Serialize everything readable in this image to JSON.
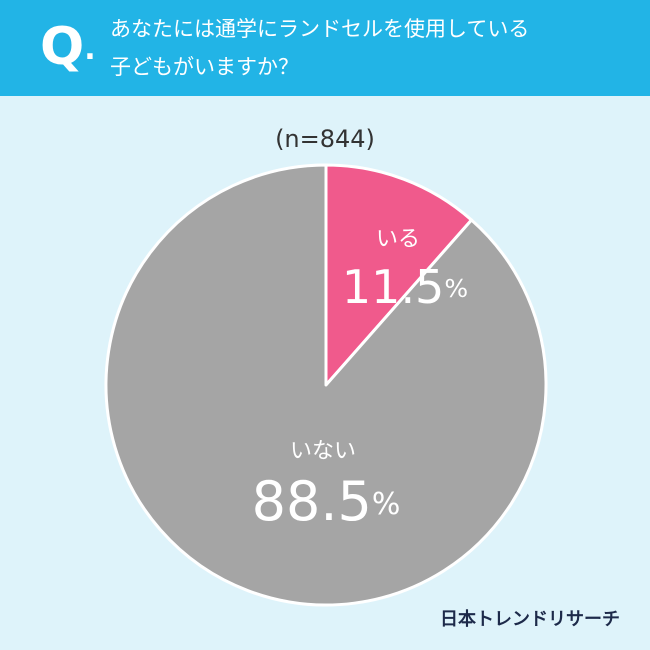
{
  "header": {
    "mark": "Q.",
    "title": [
      "あなたには通学にランドセルを使用している",
      "子どもがいますか？"
    ]
  },
  "chart_data": {
    "type": "pie",
    "subtitle": "(n=844)",
    "categories": [
      "いる",
      "いない"
    ],
    "values": [
      11.5,
      88.5
    ],
    "value_labels": [
      "11.5%",
      "88.5%"
    ],
    "colors": [
      "#f05a8c",
      "#a5a5a5"
    ]
  },
  "footer": {
    "brand": "日本トレンドリサーチ"
  }
}
